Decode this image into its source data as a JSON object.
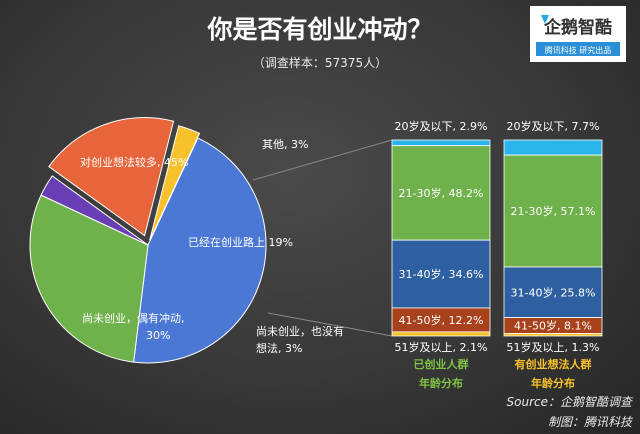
{
  "chart_data": [
    {
      "type": "pie",
      "title": "你是否有创业冲动？",
      "subtitle": "（调查样本：57375人）",
      "slices": [
        {
          "label": "对创业想法较多",
          "value": 45,
          "display": "对创业想法较多, 45%",
          "color": "#4a78d4"
        },
        {
          "label": "尚未创业，偶有冲动",
          "value": 30,
          "display_lines": [
            "尚未创业，偶有冲动,",
            "30%"
          ],
          "color": "#6fb14a"
        },
        {
          "label": "尚未创业，也没有想法",
          "value": 3,
          "display_lines": [
            "尚未创业，也没有",
            "想法, 3%"
          ],
          "color": "#6a3fb6"
        },
        {
          "label": "已经在创业路上",
          "value": 19,
          "display": "已经在创业路上 19%",
          "color": "#e8643a"
        },
        {
          "label": "其他",
          "value": 3,
          "display": "其他, 3%",
          "color": "#f6c12a"
        }
      ]
    },
    {
      "type": "bar",
      "stacked": true,
      "name_lines": [
        "已创业人群",
        "年龄分布"
      ],
      "name_color": "#7dc242",
      "segments": [
        {
          "label": "20岁及以下",
          "value": 2.9,
          "display": "20岁及以下, 2.9%"
        },
        {
          "label": "21-30岁",
          "value": 48.2,
          "display": "21-30岁, 48.2%"
        },
        {
          "label": "31-40岁",
          "value": 34.6,
          "display": "31-40岁, 34.6%"
        },
        {
          "label": "41-50岁",
          "value": 12.2,
          "display": "41-50岁, 12.2%"
        },
        {
          "label": "51岁及以上",
          "value": 2.1,
          "display": "51岁及以上, 2.1%"
        }
      ]
    },
    {
      "type": "bar",
      "stacked": true,
      "name_lines": [
        "有创业想法人群",
        "年龄分布"
      ],
      "name_color": "#f6c12a",
      "segments": [
        {
          "label": "20岁及以下",
          "value": 7.7,
          "display": "20岁及以下, 7.7%"
        },
        {
          "label": "21-30岁",
          "value": 57.1,
          "display": "21-30岁, 57.1%"
        },
        {
          "label": "31-40岁",
          "value": 25.8,
          "display": "31-40岁, 25.8%"
        },
        {
          "label": "41-50岁",
          "value": 8.1,
          "display": "41-50岁, 8.1%"
        },
        {
          "label": "51岁及以上",
          "value": 1.3,
          "display": "51岁及以上, 1.3%"
        }
      ]
    }
  ],
  "segment_colors": [
    "#2ab4ea",
    "#6fb14a",
    "#2e5fa0",
    "#a8421c",
    "#f6c12a"
  ],
  "logo": {
    "name": "企鹅智酷",
    "tagline": "腾讯科技 研究出品"
  },
  "source": {
    "line1": "Source：企鹅智酷调查",
    "line2": "制图：腾讯科技"
  }
}
